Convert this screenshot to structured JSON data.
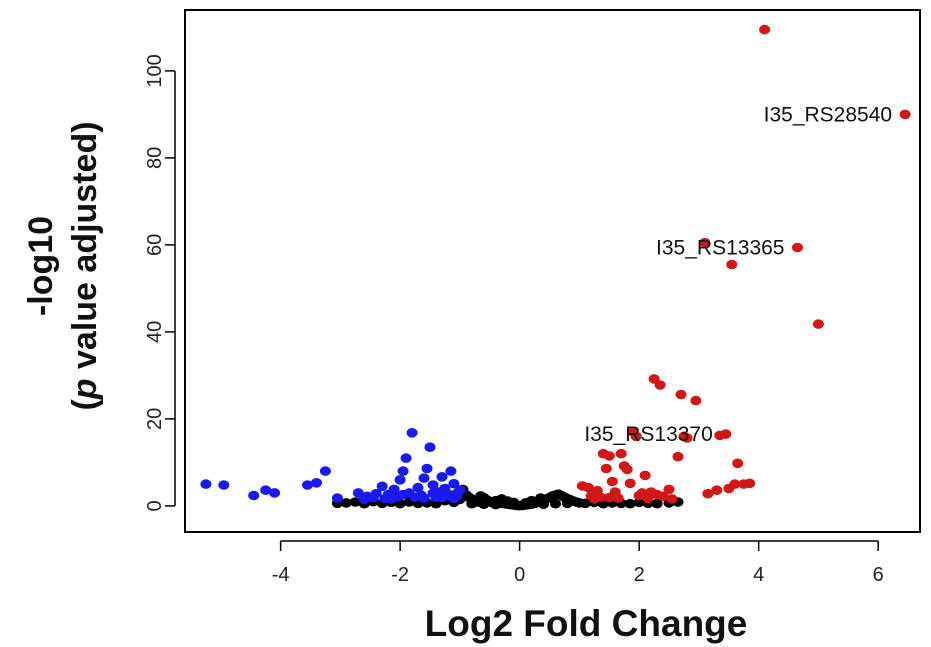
{
  "chart_data": {
    "type": "scatter",
    "title": "",
    "xlabel": "Log2 Fold Change",
    "ylabel": {
      "line1": "-log10",
      "line2_italic": "p",
      "line2_rest": " value adjusted)",
      "line2_open": "("
    },
    "xlim": [
      -5.6,
      6.7
    ],
    "ylim": [
      -6,
      114
    ],
    "xticks": [
      -4,
      -2,
      0,
      2,
      4,
      6
    ],
    "yticks": [
      0,
      20,
      40,
      60,
      80,
      100
    ],
    "grid": false,
    "legend": "none",
    "colors": {
      "down": "#1a1aee",
      "up": "#d01818",
      "ns": "#000000"
    },
    "series": [
      {
        "key": "ns",
        "points": [
          [
            -3.05,
            0.6
          ],
          [
            -2.9,
            0.7
          ],
          [
            -2.75,
            0.9
          ],
          [
            -2.6,
            0.5
          ],
          [
            -2.45,
            1.0
          ],
          [
            -2.3,
            0.6
          ],
          [
            -2.15,
            0.8
          ],
          [
            -2.0,
            0.5
          ],
          [
            -1.85,
            0.9
          ],
          [
            -1.7,
            0.6
          ],
          [
            -1.55,
            0.7
          ],
          [
            -1.4,
            0.5
          ],
          [
            -1.25,
            1.2
          ],
          [
            -1.1,
            0.8
          ],
          [
            -1.0,
            1.5
          ],
          [
            -0.95,
            3.8
          ],
          [
            -0.9,
            2.6
          ],
          [
            -0.85,
            2.0
          ],
          [
            -0.8,
            1.6
          ],
          [
            -0.75,
            1.2
          ],
          [
            -0.7,
            0.9
          ],
          [
            -0.65,
            2.3
          ],
          [
            -0.6,
            1.9
          ],
          [
            -0.55,
            1.4
          ],
          [
            -0.5,
            1.0
          ],
          [
            -0.45,
            0.7
          ],
          [
            -0.4,
            1.2
          ],
          [
            -0.35,
            0.9
          ],
          [
            -0.3,
            0.6
          ],
          [
            -0.25,
            0.5
          ],
          [
            -0.2,
            0.4
          ],
          [
            -0.15,
            0.3
          ],
          [
            -0.1,
            0.2
          ],
          [
            -0.05,
            0.1
          ],
          [
            0.0,
            0.05
          ],
          [
            0.05,
            0.1
          ],
          [
            0.1,
            0.2
          ],
          [
            0.15,
            0.3
          ],
          [
            0.2,
            0.4
          ],
          [
            0.25,
            0.6
          ],
          [
            0.3,
            0.8
          ],
          [
            0.35,
            1.0
          ],
          [
            0.4,
            1.3
          ],
          [
            0.45,
            1.6
          ],
          [
            0.5,
            1.9
          ],
          [
            0.55,
            2.3
          ],
          [
            0.6,
            2.5
          ],
          [
            0.65,
            2.7
          ],
          [
            0.7,
            2.4
          ],
          [
            0.75,
            2.0
          ],
          [
            0.8,
            1.7
          ],
          [
            0.85,
            1.4
          ],
          [
            0.9,
            1.1
          ],
          [
            0.95,
            0.9
          ],
          [
            1.0,
            0.7
          ],
          [
            1.1,
            0.6
          ],
          [
            1.25,
            0.8
          ],
          [
            1.4,
            0.5
          ],
          [
            1.55,
            0.7
          ],
          [
            1.7,
            0.6
          ],
          [
            1.85,
            0.5
          ],
          [
            2.0,
            0.8
          ],
          [
            2.15,
            0.6
          ],
          [
            2.3,
            0.5
          ],
          [
            2.5,
            0.7
          ],
          [
            2.65,
            0.9
          ],
          [
            -0.3,
            1.6
          ],
          [
            -0.2,
            1.1
          ],
          [
            0.2,
            1.2
          ],
          [
            0.35,
            1.8
          ],
          [
            0.1,
            0.7
          ],
          [
            -0.1,
            0.8
          ],
          [
            -0.6,
            0.4
          ],
          [
            -0.4,
            0.3
          ],
          [
            0.4,
            0.4
          ],
          [
            0.6,
            0.5
          ],
          [
            0.8,
            0.6
          ],
          [
            -0.8,
            0.5
          ],
          [
            -1.15,
            2.2
          ],
          [
            -1.3,
            1.6
          ]
        ]
      },
      {
        "key": "down",
        "points": [
          [
            -5.25,
            5.0
          ],
          [
            -4.95,
            4.8
          ],
          [
            -4.45,
            2.4
          ],
          [
            -4.25,
            3.6
          ],
          [
            -4.1,
            3.0
          ],
          [
            -3.55,
            4.8
          ],
          [
            -3.4,
            5.3
          ],
          [
            -3.25,
            8.0
          ],
          [
            -3.05,
            1.8
          ],
          [
            -2.7,
            3.0
          ],
          [
            -2.55,
            2.2
          ],
          [
            -2.4,
            2.8
          ],
          [
            -2.3,
            4.5
          ],
          [
            -2.2,
            2.6
          ],
          [
            -2.1,
            3.8
          ],
          [
            -2.0,
            6.0
          ],
          [
            -1.95,
            8.0
          ],
          [
            -1.9,
            11.0
          ],
          [
            -1.8,
            16.8
          ],
          [
            -1.7,
            4.2
          ],
          [
            -1.65,
            2.5
          ],
          [
            -1.6,
            6.4
          ],
          [
            -1.55,
            8.6
          ],
          [
            -1.5,
            13.5
          ],
          [
            -1.45,
            4.8
          ],
          [
            -1.4,
            2.0
          ],
          [
            -1.35,
            3.2
          ],
          [
            -1.3,
            6.7
          ],
          [
            -1.25,
            4.0
          ],
          [
            -1.2,
            2.7
          ],
          [
            -1.15,
            8.0
          ],
          [
            -1.1,
            5.1
          ],
          [
            -1.05,
            2.3
          ],
          [
            -1.0,
            3.6
          ],
          [
            -2.6,
            1.5
          ],
          [
            -2.45,
            1.9
          ],
          [
            -2.25,
            1.7
          ],
          [
            -2.05,
            2.1
          ],
          [
            -1.85,
            3.0
          ],
          [
            -1.75,
            2.0
          ],
          [
            -1.6,
            1.8
          ],
          [
            -1.45,
            2.9
          ],
          [
            -1.3,
            1.9
          ],
          [
            -1.2,
            2.4
          ],
          [
            -1.1,
            1.7
          ],
          [
            -1.05,
            2.9
          ],
          [
            -2.15,
            1.6
          ],
          [
            -1.95,
            2.6
          ]
        ]
      },
      {
        "key": "up",
        "points": [
          [
            1.05,
            4.6
          ],
          [
            1.15,
            4.2
          ],
          [
            1.2,
            2.3
          ],
          [
            1.3,
            3.5
          ],
          [
            1.35,
            2.0
          ],
          [
            1.4,
            12.0
          ],
          [
            1.45,
            8.6
          ],
          [
            1.5,
            11.5
          ],
          [
            1.55,
            5.6
          ],
          [
            1.6,
            3.2
          ],
          [
            1.7,
            12.0
          ],
          [
            1.75,
            9.2
          ],
          [
            1.8,
            8.4
          ],
          [
            1.85,
            5.2
          ],
          [
            1.9,
            17.0
          ],
          [
            1.95,
            16.0
          ],
          [
            2.0,
            2.4
          ],
          [
            2.05,
            3.0
          ],
          [
            2.1,
            7.0
          ],
          [
            2.2,
            3.2
          ],
          [
            2.25,
            29.2
          ],
          [
            2.3,
            2.6
          ],
          [
            2.35,
            27.8
          ],
          [
            2.4,
            2.2
          ],
          [
            2.5,
            3.8
          ],
          [
            2.55,
            1.6
          ],
          [
            2.65,
            11.3
          ],
          [
            2.7,
            25.6
          ],
          [
            2.75,
            16.0
          ],
          [
            2.8,
            15.6
          ],
          [
            2.95,
            24.2
          ],
          [
            3.1,
            60.5
          ],
          [
            3.15,
            2.8
          ],
          [
            3.3,
            3.6
          ],
          [
            3.35,
            16.2
          ],
          [
            3.45,
            16.5
          ],
          [
            3.5,
            4.0
          ],
          [
            3.55,
            55.5
          ],
          [
            3.6,
            5.0
          ],
          [
            3.65,
            9.8
          ],
          [
            3.75,
            5.0
          ],
          [
            3.85,
            5.2
          ],
          [
            4.1,
            109.5
          ],
          [
            4.65,
            59.4
          ],
          [
            5.0,
            41.8
          ],
          [
            6.45,
            90.0
          ],
          [
            1.25,
            1.6
          ],
          [
            1.65,
            1.8
          ],
          [
            2.15,
            1.7
          ],
          [
            1.5,
            1.9
          ]
        ]
      }
    ],
    "annotations": [
      {
        "text": "I35_RS28540",
        "x": 6.45,
        "y": 90.0
      },
      {
        "text": "I35_RS13365",
        "x": 4.65,
        "y": 59.4
      },
      {
        "text": "I35_RS13370",
        "x": 3.45,
        "y": 16.5
      }
    ]
  }
}
